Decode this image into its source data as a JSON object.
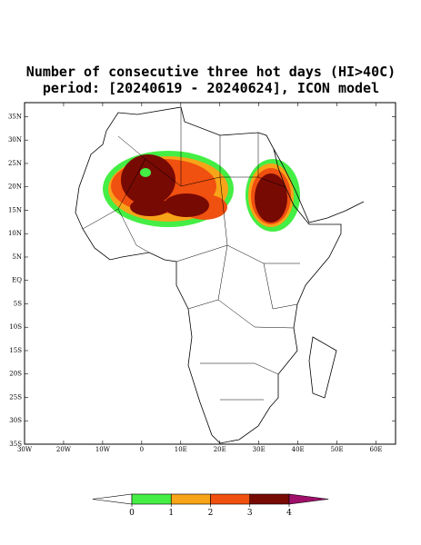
{
  "map": {
    "title": "Number of consecutive three hot days (HI>40C)",
    "subtitle": "period: [20240619 - 20240624], ICON model",
    "lonlim": [
      -30,
      65
    ],
    "latlim": [
      -35,
      38
    ],
    "lon_ticks": [
      {
        "value": -30,
        "label": "30W"
      },
      {
        "value": -20,
        "label": "20W"
      },
      {
        "value": -10,
        "label": "10W"
      },
      0,
      {
        "value": 10,
        "label": "10E"
      },
      {
        "value": 20,
        "label": "20E"
      },
      {
        "value": 30,
        "label": "30E"
      },
      {
        "value": 40,
        "label": "40E"
      },
      {
        "value": 50,
        "label": "50E"
      },
      {
        "value": 60,
        "label": "60E"
      }
    ],
    "lat_ticks": [
      {
        "value": 35,
        "label": "35N"
      },
      {
        "value": 30,
        "label": "30N"
      },
      {
        "value": 25,
        "label": "25N"
      },
      {
        "value": 20,
        "label": "20N"
      },
      {
        "value": 15,
        "label": "15N"
      },
      {
        "value": 10,
        "label": "10N"
      },
      {
        "value": 5,
        "label": "5N"
      },
      {
        "value": 0,
        "label": "EQ"
      },
      {
        "value": -5,
        "label": "5S"
      },
      {
        "value": -10,
        "label": "10S"
      },
      {
        "value": -15,
        "label": "15S"
      },
      {
        "value": -20,
        "label": "20S"
      },
      {
        "value": -25,
        "label": "25S"
      },
      {
        "value": -30,
        "label": "30S"
      },
      {
        "value": -35,
        "label": "35S"
      }
    ],
    "colorbar": {
      "levels": [
        0,
        1,
        2,
        3,
        4
      ],
      "colors": [
        "#ffffff",
        "#44ee44",
        "#f8a418",
        "#f05010",
        "#780a04",
        "#a0106a"
      ]
    }
  }
}
